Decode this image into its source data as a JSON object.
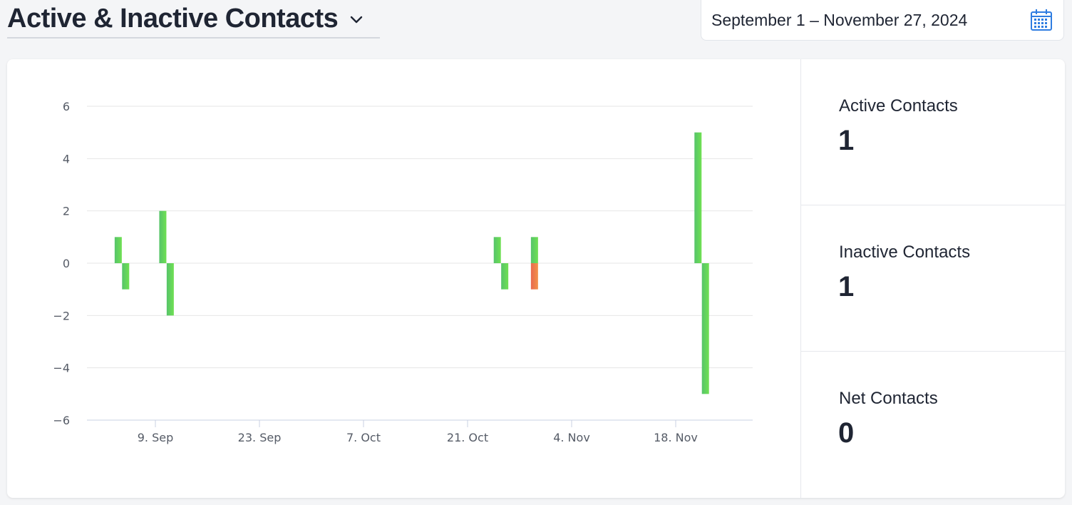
{
  "header": {
    "title": "Active & Inactive Contacts",
    "date_range": "September 1 – November 27, 2024"
  },
  "icons": {
    "title_dropdown": "chevron-down-icon",
    "date_picker": "calendar-icon"
  },
  "colors": {
    "active_bar": "#5fd35f",
    "inactive_bar": "#ec7a4c",
    "accent": "#2f7de1"
  },
  "stats": {
    "active": {
      "label": "Active Contacts",
      "value": "1"
    },
    "inactive": {
      "label": "Inactive Contacts",
      "value": "1"
    },
    "net": {
      "label": "Net Contacts",
      "value": "0"
    }
  },
  "chart_data": {
    "type": "bar",
    "title": "",
    "xlabel": "",
    "ylabel": "",
    "ylim": [
      -6,
      6
    ],
    "y_ticks": [
      "6",
      "4",
      "2",
      "0",
      "−2",
      "−4",
      "−6"
    ],
    "x_tick_labels": [
      "9. Sep",
      "23. Sep",
      "7. Oct",
      "21. Oct",
      "4. Nov",
      "18. Nov"
    ],
    "grid": true,
    "legend": "none",
    "bars": [
      {
        "date": "2024-09-04",
        "value": 1,
        "color": "#5fd35f"
      },
      {
        "date": "2024-09-05",
        "value": -1,
        "color": "#5fd35f"
      },
      {
        "date": "2024-09-10",
        "value": 2,
        "color": "#5fd35f"
      },
      {
        "date": "2024-09-11",
        "value": -2,
        "color": "#5fd35f"
      },
      {
        "date": "2024-10-25",
        "value": 1,
        "color": "#5fd35f"
      },
      {
        "date": "2024-10-26",
        "value": -1,
        "color": "#5fd35f"
      },
      {
        "date": "2024-10-30",
        "value": 1,
        "color": "#5fd35f"
      },
      {
        "date": "2024-10-30",
        "value": -1,
        "color": "#ec7a4c"
      },
      {
        "date": "2024-11-21",
        "value": 5,
        "color": "#5fd35f"
      },
      {
        "date": "2024-11-22",
        "value": -5,
        "color": "#5fd35f"
      }
    ]
  }
}
